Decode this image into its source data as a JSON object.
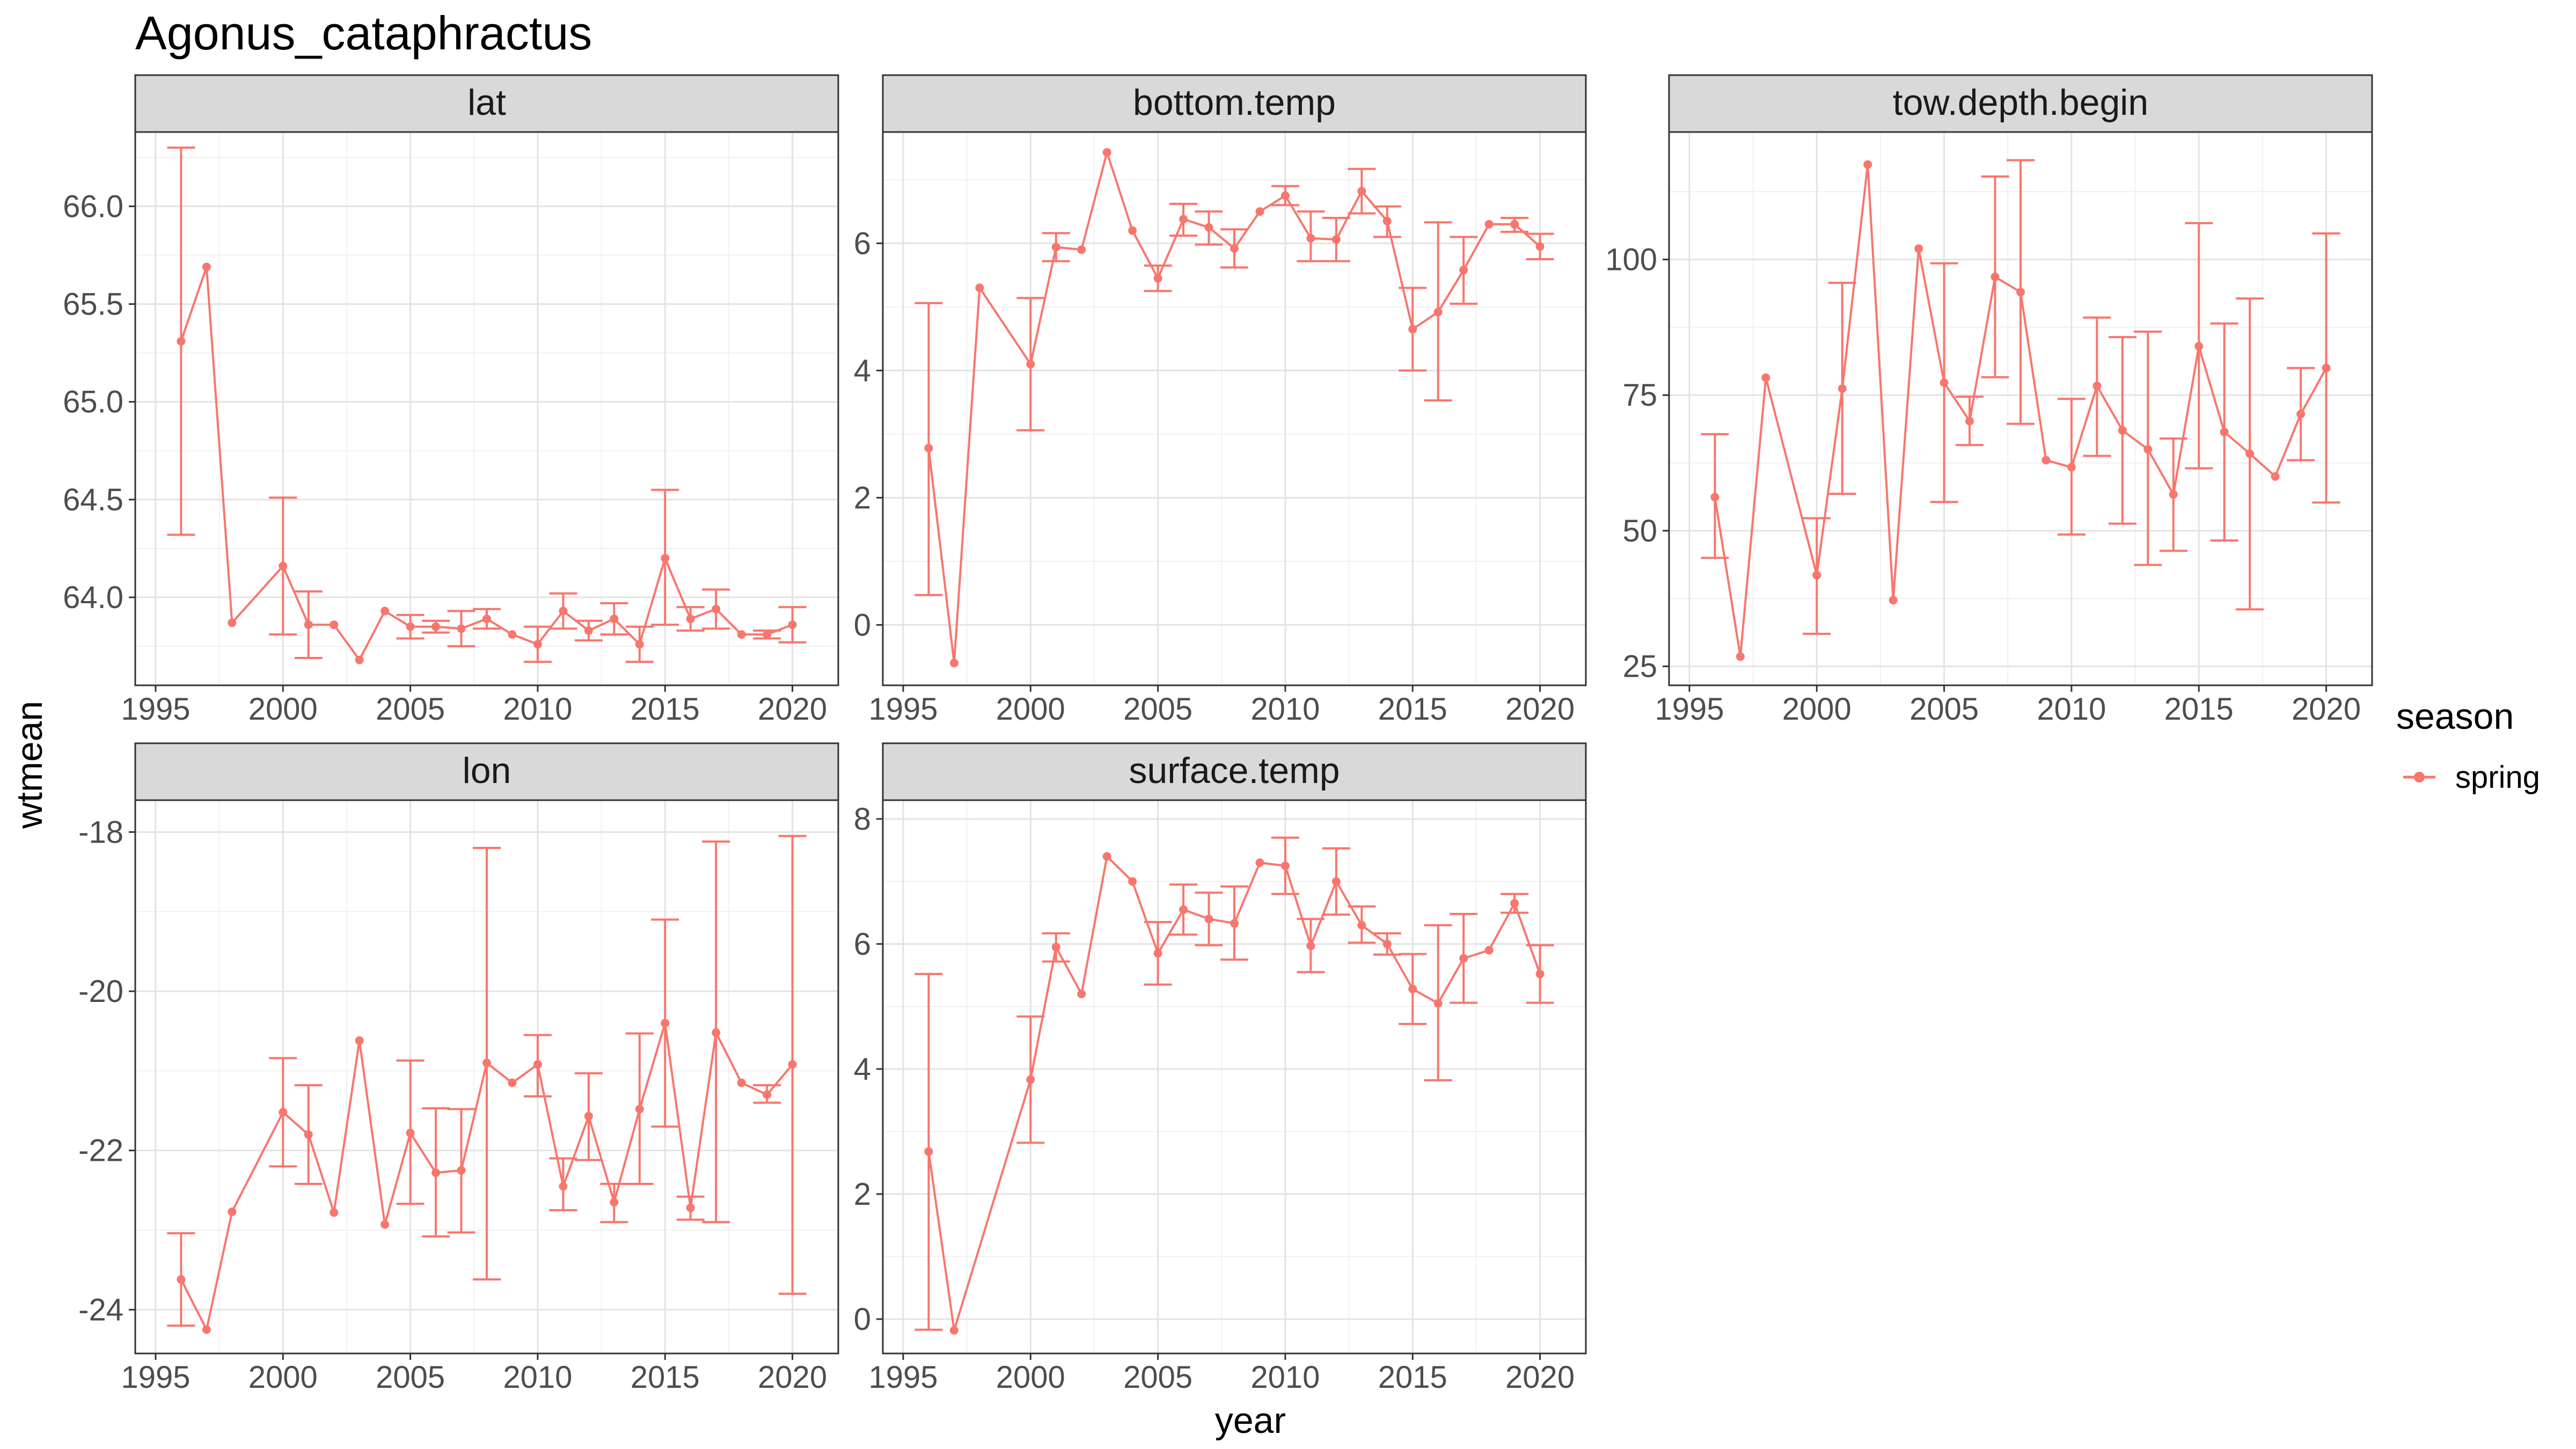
{
  "chart_data": {
    "type": "line",
    "title": "Agonus_cataphractus",
    "xlabel": "year",
    "ylabel": "wtmean",
    "legend": {
      "title": "season",
      "placement": "right",
      "entries": [
        "spring"
      ]
    },
    "series_color": "#F8766D",
    "grid": true,
    "facets": [
      {
        "name": "lat",
        "xlim": [
          1994.2,
          2021.8
        ],
        "ylim": [
          63.55,
          66.38
        ],
        "xticks": [
          1995,
          2000,
          2005,
          2010,
          2015,
          2020
        ],
        "yticks": [
          64.0,
          64.5,
          65.0,
          65.5,
          66.0
        ],
        "ytick_labels": [
          "64.0",
          "64.5",
          "65.0",
          "65.5",
          "66.0"
        ],
        "points": [
          {
            "x": 1996,
            "y": 65.31,
            "lo": 64.32,
            "hi": 66.3
          },
          {
            "x": 1997,
            "y": 65.69
          },
          {
            "x": 1998,
            "y": 63.87
          },
          {
            "x": 2000,
            "y": 64.16,
            "lo": 63.81,
            "hi": 64.51
          },
          {
            "x": 2001,
            "y": 63.86,
            "lo": 63.69,
            "hi": 64.03
          },
          {
            "x": 2002,
            "y": 63.86
          },
          {
            "x": 2003,
            "y": 63.68
          },
          {
            "x": 2004,
            "y": 63.93
          },
          {
            "x": 2005,
            "y": 63.85,
            "lo": 63.79,
            "hi": 63.91
          },
          {
            "x": 2006,
            "y": 63.85,
            "lo": 63.82,
            "hi": 63.88
          },
          {
            "x": 2007,
            "y": 63.84,
            "lo": 63.75,
            "hi": 63.93
          },
          {
            "x": 2008,
            "y": 63.89,
            "lo": 63.84,
            "hi": 63.94
          },
          {
            "x": 2009,
            "y": 63.81
          },
          {
            "x": 2010,
            "y": 63.76,
            "lo": 63.67,
            "hi": 63.85
          },
          {
            "x": 2011,
            "y": 63.93,
            "lo": 63.84,
            "hi": 64.02
          },
          {
            "x": 2012,
            "y": 63.83,
            "lo": 63.78,
            "hi": 63.88
          },
          {
            "x": 2013,
            "y": 63.89,
            "lo": 63.81,
            "hi": 63.97
          },
          {
            "x": 2014,
            "y": 63.76,
            "lo": 63.67,
            "hi": 63.85
          },
          {
            "x": 2015,
            "y": 64.2,
            "lo": 63.86,
            "hi": 64.55
          },
          {
            "x": 2016,
            "y": 63.89,
            "lo": 63.83,
            "hi": 63.95
          },
          {
            "x": 2017,
            "y": 63.94,
            "lo": 63.84,
            "hi": 64.04
          },
          {
            "x": 2018,
            "y": 63.81
          },
          {
            "x": 2019,
            "y": 63.81,
            "lo": 63.79,
            "hi": 63.83
          },
          {
            "x": 2020,
            "y": 63.86,
            "lo": 63.77,
            "hi": 63.95
          }
        ]
      },
      {
        "name": "bottom.temp",
        "xlim": [
          1994.2,
          2021.8
        ],
        "ylim": [
          -0.95,
          7.75
        ],
        "xticks": [
          1995,
          2000,
          2005,
          2010,
          2015,
          2020
        ],
        "yticks": [
          0,
          2,
          4,
          6
        ],
        "ytick_labels": [
          "0",
          "2",
          "4",
          "6"
        ],
        "points": [
          {
            "x": 1996,
            "y": 2.78,
            "lo": 0.47,
            "hi": 5.06
          },
          {
            "x": 1997,
            "y": -0.6
          },
          {
            "x": 1998,
            "y": 5.3
          },
          {
            "x": 2000,
            "y": 4.1,
            "lo": 3.06,
            "hi": 5.14
          },
          {
            "x": 2001,
            "y": 5.94,
            "lo": 5.72,
            "hi": 6.16
          },
          {
            "x": 2002,
            "y": 5.9
          },
          {
            "x": 2003,
            "y": 7.43
          },
          {
            "x": 2004,
            "y": 6.2
          },
          {
            "x": 2005,
            "y": 5.45,
            "lo": 5.25,
            "hi": 5.65
          },
          {
            "x": 2006,
            "y": 6.38,
            "lo": 6.12,
            "hi": 6.62
          },
          {
            "x": 2007,
            "y": 6.25,
            "lo": 5.98,
            "hi": 6.5
          },
          {
            "x": 2008,
            "y": 5.92,
            "lo": 5.62,
            "hi": 6.22
          },
          {
            "x": 2009,
            "y": 6.5
          },
          {
            "x": 2010,
            "y": 6.75,
            "lo": 6.6,
            "hi": 6.9
          },
          {
            "x": 2011,
            "y": 6.08,
            "lo": 5.72,
            "hi": 6.5
          },
          {
            "x": 2012,
            "y": 6.06,
            "lo": 5.72,
            "hi": 6.4
          },
          {
            "x": 2013,
            "y": 6.82,
            "lo": 6.47,
            "hi": 7.17
          },
          {
            "x": 2014,
            "y": 6.35,
            "lo": 6.1,
            "hi": 6.58
          },
          {
            "x": 2015,
            "y": 4.65,
            "lo": 4.0,
            "hi": 5.3
          },
          {
            "x": 2016,
            "y": 4.92,
            "lo": 3.53,
            "hi": 6.33
          },
          {
            "x": 2017,
            "y": 5.58,
            "lo": 5.05,
            "hi": 6.1
          },
          {
            "x": 2018,
            "y": 6.3
          },
          {
            "x": 2019,
            "y": 6.3,
            "lo": 6.18,
            "hi": 6.4
          },
          {
            "x": 2020,
            "y": 5.95,
            "lo": 5.75,
            "hi": 6.15
          }
        ]
      },
      {
        "name": "tow.depth.begin",
        "xlim": [
          1994.2,
          2021.8
        ],
        "ylim": [
          21.5,
          123.5
        ],
        "xticks": [
          1995,
          2000,
          2005,
          2010,
          2015,
          2020
        ],
        "yticks": [
          25,
          50,
          75,
          100
        ],
        "ytick_labels": [
          "25",
          "50",
          "75",
          "100"
        ],
        "points": [
          {
            "x": 1996,
            "y": 56.2,
            "lo": 45.0,
            "hi": 67.8
          },
          {
            "x": 1997,
            "y": 26.8
          },
          {
            "x": 1998,
            "y": 78.2
          },
          {
            "x": 2000,
            "y": 41.8,
            "lo": 31.0,
            "hi": 52.3
          },
          {
            "x": 2001,
            "y": 76.2,
            "lo": 56.8,
            "hi": 95.7
          },
          {
            "x": 2002,
            "y": 117.5
          },
          {
            "x": 2003,
            "y": 37.2
          },
          {
            "x": 2004,
            "y": 102.0
          },
          {
            "x": 2005,
            "y": 77.3,
            "lo": 55.3,
            "hi": 99.3
          },
          {
            "x": 2006,
            "y": 70.2,
            "lo": 65.8,
            "hi": 74.7
          },
          {
            "x": 2007,
            "y": 96.8,
            "lo": 78.3,
            "hi": 115.3
          },
          {
            "x": 2008,
            "y": 94.0,
            "lo": 69.7,
            "hi": 118.3
          },
          {
            "x": 2009,
            "y": 63.0
          },
          {
            "x": 2010,
            "y": 61.7,
            "lo": 49.3,
            "hi": 74.3
          },
          {
            "x": 2011,
            "y": 76.7,
            "lo": 63.8,
            "hi": 89.3
          },
          {
            "x": 2012,
            "y": 68.5,
            "lo": 51.3,
            "hi": 85.7
          },
          {
            "x": 2013,
            "y": 65.0,
            "lo": 43.7,
            "hi": 86.7
          },
          {
            "x": 2014,
            "y": 56.7,
            "lo": 46.3,
            "hi": 67.0
          },
          {
            "x": 2015,
            "y": 84.0,
            "lo": 61.5,
            "hi": 106.7
          },
          {
            "x": 2016,
            "y": 68.2,
            "lo": 48.2,
            "hi": 88.2
          },
          {
            "x": 2017,
            "y": 64.2,
            "lo": 35.5,
            "hi": 92.8
          },
          {
            "x": 2018,
            "y": 60.0
          },
          {
            "x": 2019,
            "y": 71.5,
            "lo": 63.0,
            "hi": 80.0
          },
          {
            "x": 2020,
            "y": 80.0,
            "lo": 55.2,
            "hi": 104.8
          }
        ]
      },
      {
        "name": "lon",
        "xlim": [
          1994.2,
          2021.8
        ],
        "ylim": [
          -24.55,
          -17.6
        ],
        "xticks": [
          1995,
          2000,
          2005,
          2010,
          2015,
          2020
        ],
        "yticks": [
          -24,
          -22,
          -20,
          -18
        ],
        "ytick_labels": [
          "-24",
          "-22",
          "-20",
          "-18"
        ],
        "points": [
          {
            "x": 1996,
            "y": -23.62,
            "lo": -24.2,
            "hi": -23.04
          },
          {
            "x": 1997,
            "y": -24.25
          },
          {
            "x": 1998,
            "y": -22.77
          },
          {
            "x": 2000,
            "y": -21.52,
            "lo": -22.2,
            "hi": -20.84
          },
          {
            "x": 2001,
            "y": -21.8,
            "lo": -22.42,
            "hi": -21.18
          },
          {
            "x": 2002,
            "y": -22.78
          },
          {
            "x": 2003,
            "y": -20.62
          },
          {
            "x": 2004,
            "y": -22.93
          },
          {
            "x": 2005,
            "y": -21.78,
            "lo": -22.67,
            "hi": -20.87
          },
          {
            "x": 2006,
            "y": -22.28,
            "lo": -23.08,
            "hi": -21.47
          },
          {
            "x": 2007,
            "y": -22.25,
            "lo": -23.03,
            "hi": -21.48
          },
          {
            "x": 2008,
            "y": -20.9,
            "lo": -23.62,
            "hi": -18.2
          },
          {
            "x": 2009,
            "y": -21.15
          },
          {
            "x": 2010,
            "y": -20.92,
            "lo": -21.32,
            "hi": -20.55
          },
          {
            "x": 2011,
            "y": -22.45,
            "lo": -22.75,
            "hi": -22.1
          },
          {
            "x": 2012,
            "y": -21.57,
            "lo": -22.12,
            "hi": -21.03
          },
          {
            "x": 2013,
            "y": -22.65,
            "lo": -22.9,
            "hi": -22.42
          },
          {
            "x": 2014,
            "y": -21.48,
            "lo": -22.42,
            "hi": -20.53
          },
          {
            "x": 2015,
            "y": -20.4,
            "lo": -21.7,
            "hi": -19.1
          },
          {
            "x": 2016,
            "y": -22.72,
            "lo": -22.87,
            "hi": -22.58
          },
          {
            "x": 2017,
            "y": -20.52,
            "lo": -22.9,
            "hi": -18.12
          },
          {
            "x": 2018,
            "y": -21.15
          },
          {
            "x": 2019,
            "y": -21.3,
            "lo": -21.4,
            "hi": -21.18
          },
          {
            "x": 2020,
            "y": -20.92,
            "lo": -23.8,
            "hi": -18.05
          }
        ]
      },
      {
        "name": "surface.temp",
        "xlim": [
          1994.2,
          2021.8
        ],
        "ylim": [
          -0.55,
          8.3
        ],
        "xticks": [
          1995,
          2000,
          2005,
          2010,
          2015,
          2020
        ],
        "yticks": [
          0,
          2,
          4,
          6,
          8
        ],
        "ytick_labels": [
          "0",
          "2",
          "4",
          "6",
          "8"
        ],
        "points": [
          {
            "x": 1996,
            "y": 2.68,
            "lo": -0.17,
            "hi": 5.52
          },
          {
            "x": 1997,
            "y": -0.18
          },
          {
            "x": 2000,
            "y": 3.83,
            "lo": 2.82,
            "hi": 4.84
          },
          {
            "x": 2001,
            "y": 5.95,
            "lo": 5.72,
            "hi": 6.17
          },
          {
            "x": 2002,
            "y": 5.2
          },
          {
            "x": 2003,
            "y": 7.4
          },
          {
            "x": 2004,
            "y": 7.0
          },
          {
            "x": 2005,
            "y": 5.85,
            "lo": 5.35,
            "hi": 6.35
          },
          {
            "x": 2006,
            "y": 6.55,
            "lo": 6.15,
            "hi": 6.95
          },
          {
            "x": 2007,
            "y": 6.4,
            "lo": 5.98,
            "hi": 6.82
          },
          {
            "x": 2008,
            "y": 6.33,
            "lo": 5.75,
            "hi": 6.92
          },
          {
            "x": 2009,
            "y": 7.3
          },
          {
            "x": 2010,
            "y": 7.25,
            "lo": 6.8,
            "hi": 7.7
          },
          {
            "x": 2011,
            "y": 5.97,
            "lo": 5.55,
            "hi": 6.4
          },
          {
            "x": 2012,
            "y": 7.0,
            "lo": 6.47,
            "hi": 7.53
          },
          {
            "x": 2013,
            "y": 6.3,
            "lo": 6.02,
            "hi": 6.6
          },
          {
            "x": 2014,
            "y": 6.0,
            "lo": 5.83,
            "hi": 6.17
          },
          {
            "x": 2015,
            "y": 5.28,
            "lo": 4.72,
            "hi": 5.84
          },
          {
            "x": 2016,
            "y": 5.05,
            "lo": 3.82,
            "hi": 6.3
          },
          {
            "x": 2017,
            "y": 5.77,
            "lo": 5.06,
            "hi": 6.48
          },
          {
            "x": 2018,
            "y": 5.9
          },
          {
            "x": 2019,
            "y": 6.65,
            "lo": 6.5,
            "hi": 6.8
          },
          {
            "x": 2020,
            "y": 5.52,
            "lo": 5.06,
            "hi": 5.98
          }
        ]
      }
    ]
  }
}
